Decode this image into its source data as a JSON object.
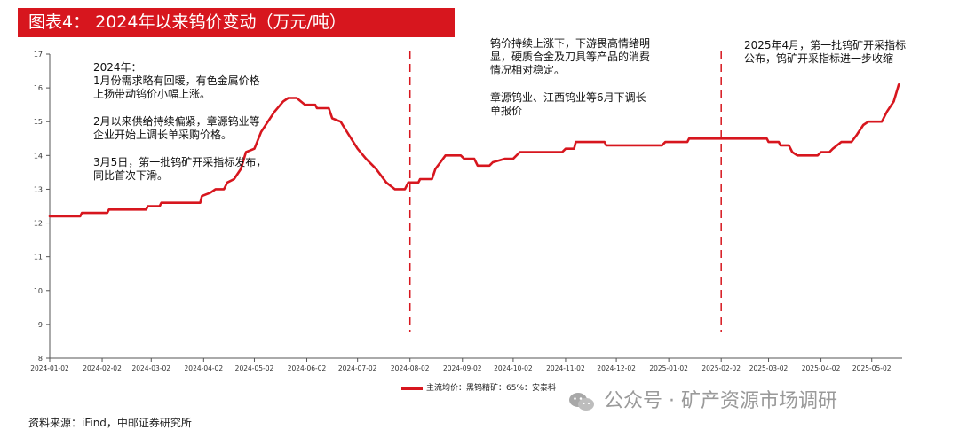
{
  "header": {
    "title": "图表4：  2024年以来钨价变动（万元/吨）"
  },
  "chart_data": {
    "type": "line",
    "title": "2024年以来钨价变动（万元/吨）",
    "ylim": [
      8,
      17
    ],
    "y_ticks": [
      "8",
      "9",
      "10",
      "11",
      "12",
      "13",
      "14",
      "15",
      "16",
      "17"
    ],
    "x_ticks": [
      "2024-01-02",
      "2024-02-02",
      "2024-03-02",
      "2024-04-02",
      "2024-05-02",
      "2024-06-02",
      "2024-07-02",
      "2024-08-02",
      "2024-09-02",
      "2024-10-02",
      "2024-11-02",
      "2024-12-02",
      "2025-01-02",
      "2025-02-02",
      "2025-03-02",
      "2025-04-02",
      "2025-05-02"
    ],
    "grid": false,
    "legend_position": "bottom",
    "series": [
      {
        "name": "主流均价：黑钨精矿：65%：安泰科",
        "color": "#d7161e",
        "points": [
          [
            "2024-01-02",
            12.2
          ],
          [
            "2024-01-20",
            12.2
          ],
          [
            "2024-01-21",
            12.3
          ],
          [
            "2024-02-05",
            12.3
          ],
          [
            "2024-02-06",
            12.4
          ],
          [
            "2024-02-28",
            12.4
          ],
          [
            "2024-02-29",
            12.5
          ],
          [
            "2024-03-07",
            12.5
          ],
          [
            "2024-03-08",
            12.6
          ],
          [
            "2024-03-31",
            12.6
          ],
          [
            "2024-04-01",
            12.8
          ],
          [
            "2024-04-06",
            12.9
          ],
          [
            "2024-04-09",
            13.0
          ],
          [
            "2024-04-14",
            13.0
          ],
          [
            "2024-04-16",
            13.2
          ],
          [
            "2024-04-20",
            13.3
          ],
          [
            "2024-04-24",
            13.6
          ],
          [
            "2024-04-27",
            14.1
          ],
          [
            "2024-05-02",
            14.2
          ],
          [
            "2024-05-06",
            14.7
          ],
          [
            "2024-05-10",
            15.0
          ],
          [
            "2024-05-14",
            15.3
          ],
          [
            "2024-05-19",
            15.6
          ],
          [
            "2024-05-22",
            15.7
          ],
          [
            "2024-05-27",
            15.7
          ],
          [
            "2024-06-01",
            15.5
          ],
          [
            "2024-06-07",
            15.5
          ],
          [
            "2024-06-08",
            15.4
          ],
          [
            "2024-06-15",
            15.4
          ],
          [
            "2024-06-17",
            15.1
          ],
          [
            "2024-06-22",
            15.0
          ],
          [
            "2024-06-27",
            14.6
          ],
          [
            "2024-07-02",
            14.2
          ],
          [
            "2024-07-07",
            13.9
          ],
          [
            "2024-07-13",
            13.6
          ],
          [
            "2024-07-19",
            13.2
          ],
          [
            "2024-07-24",
            13.0
          ],
          [
            "2024-07-30",
            13.0
          ],
          [
            "2024-08-01",
            13.2
          ],
          [
            "2024-08-07",
            13.2
          ],
          [
            "2024-08-08",
            13.3
          ],
          [
            "2024-08-15",
            13.3
          ],
          [
            "2024-08-17",
            13.6
          ],
          [
            "2024-08-20",
            13.8
          ],
          [
            "2024-08-23",
            14.0
          ],
          [
            "2024-09-01",
            14.0
          ],
          [
            "2024-09-03",
            13.9
          ],
          [
            "2024-09-09",
            13.9
          ],
          [
            "2024-09-11",
            13.7
          ],
          [
            "2024-09-18",
            13.7
          ],
          [
            "2024-09-20",
            13.8
          ],
          [
            "2024-09-27",
            13.9
          ],
          [
            "2024-10-02",
            13.9
          ],
          [
            "2024-10-06",
            14.1
          ],
          [
            "2024-10-31",
            14.1
          ],
          [
            "2024-11-02",
            14.2
          ],
          [
            "2024-11-07",
            14.2
          ],
          [
            "2024-11-08",
            14.4
          ],
          [
            "2024-11-25",
            14.4
          ],
          [
            "2024-11-26",
            14.3
          ],
          [
            "2024-12-29",
            14.3
          ],
          [
            "2024-12-31",
            14.4
          ],
          [
            "2025-01-13",
            14.4
          ],
          [
            "2025-01-14",
            14.5
          ],
          [
            "2025-03-01",
            14.5
          ],
          [
            "2025-03-02",
            14.4
          ],
          [
            "2025-03-08",
            14.4
          ],
          [
            "2025-03-09",
            14.3
          ],
          [
            "2025-03-14",
            14.3
          ],
          [
            "2025-03-16",
            14.1
          ],
          [
            "2025-03-19",
            14.0
          ],
          [
            "2025-03-31",
            14.0
          ],
          [
            "2025-04-02",
            14.1
          ],
          [
            "2025-04-07",
            14.1
          ],
          [
            "2025-04-09",
            14.2
          ],
          [
            "2025-04-14",
            14.4
          ],
          [
            "2025-04-20",
            14.4
          ],
          [
            "2025-04-23",
            14.6
          ],
          [
            "2025-04-27",
            14.9
          ],
          [
            "2025-04-30",
            15.0
          ],
          [
            "2025-05-08",
            15.0
          ],
          [
            "2025-05-11",
            15.3
          ],
          [
            "2025-05-15",
            15.6
          ],
          [
            "2025-05-18",
            16.1
          ]
        ]
      }
    ],
    "vlines": [
      "2024-08-02",
      "2025-02-02"
    ]
  },
  "annotations": {
    "a2024": {
      "lines": [
        "2024年：",
        "1月份需求略有回暖，有色金属价格",
        "上扬带动钨价小幅上涨。"
      ],
      "p2": [
        "2月以来供给持续偏紧，章源钨业等",
        "企业开始上调长单采购价格。"
      ],
      "p3": [
        "3月5日，第一批钨矿开采指标发布，",
        "同比首次下滑。"
      ]
    },
    "amid": {
      "p1": [
        "钨价持续上涨下，下游畏高情绪明",
        "显，硬质合金及刀具等产品的消费",
        "情况相对稳定。"
      ],
      "p2": [
        "章源钨业、江西钨业等6月下调长",
        "单报价"
      ]
    },
    "a2025": {
      "p1": [
        "2025年4月，第一批钨矿开采指标",
        "公布，钨矿开采指标进一步收缩"
      ]
    }
  },
  "legend": {
    "label": "主流均价：黑钨精矿：65%：安泰科"
  },
  "watermark": {
    "text": "公众号 · 矿产资源市场调研"
  },
  "source": {
    "text": "资料来源：iFind，中邮证券研究所"
  },
  "colors": {
    "accent": "#d7161e",
    "axis": "#555555",
    "text": "#111111"
  }
}
